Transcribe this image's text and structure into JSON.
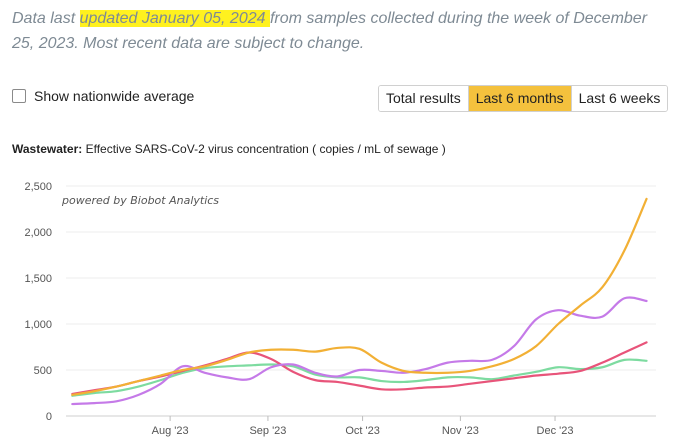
{
  "note": {
    "prefix": "Data last ",
    "highlight": "updated January 05, 2024 ",
    "suffix": "from samples collected during the week of December 25, 2023. Most recent data are subject to change."
  },
  "controls": {
    "checkbox_label": "Show nationwide average",
    "checked": false,
    "toggles": [
      {
        "label": "Total results",
        "active": false
      },
      {
        "label": "Last 6 months",
        "active": true
      },
      {
        "label": "Last 6 weeks",
        "active": false
      }
    ]
  },
  "chart_header": {
    "bold": "Wastewater:",
    "rest": " Effective SARS-CoV-2 virus concentration ( copies / mL of sewage )"
  },
  "attribution": "powered by Biobot Analytics",
  "colors": {
    "orange": "#f2b035",
    "pink": "#e8547a",
    "green": "#7ddba0",
    "purple": "#c57ae8",
    "highlight": "#fff11f",
    "active_toggle": "#f4c13d"
  },
  "chart_data": {
    "type": "line",
    "title": "Wastewater: Effective SARS-CoV-2 virus concentration ( copies / mL of sewage )",
    "xlabel": "",
    "ylabel": "",
    "x_ticks": [
      "Aug '23",
      "Sep '23",
      "Oct '23",
      "Nov '23",
      "Dec '23"
    ],
    "x": [
      "2023-07-01",
      "2023-07-08",
      "2023-07-15",
      "2023-07-22",
      "2023-07-29",
      "2023-08-05",
      "2023-08-12",
      "2023-08-19",
      "2023-08-26",
      "2023-09-02",
      "2023-09-09",
      "2023-09-16",
      "2023-09-23",
      "2023-09-30",
      "2023-10-07",
      "2023-10-14",
      "2023-10-21",
      "2023-10-28",
      "2023-11-04",
      "2023-11-11",
      "2023-11-18",
      "2023-11-25",
      "2023-12-02",
      "2023-12-09",
      "2023-12-16",
      "2023-12-23",
      "2023-12-30"
    ],
    "ylim": [
      0,
      2500
    ],
    "y_ticks": [
      0,
      500,
      1000,
      1500,
      2000,
      2500
    ],
    "grid": true,
    "series": [
      {
        "color": "orange",
        "values": [
          230,
          270,
          320,
          380,
          440,
          500,
          540,
          610,
          690,
          720,
          720,
          700,
          740,
          730,
          580,
          490,
          470,
          470,
          490,
          540,
          620,
          760,
          1000,
          1200,
          1400,
          1800,
          2360
        ]
      },
      {
        "color": "pink",
        "values": [
          240,
          280,
          320,
          380,
          430,
          490,
          550,
          620,
          690,
          620,
          480,
          390,
          370,
          330,
          290,
          290,
          310,
          320,
          350,
          380,
          410,
          440,
          460,
          490,
          580,
          690,
          800
        ]
      },
      {
        "color": "green",
        "values": [
          220,
          250,
          270,
          320,
          390,
          470,
          520,
          540,
          550,
          560,
          540,
          450,
          420,
          420,
          380,
          370,
          390,
          420,
          420,
          400,
          440,
          480,
          530,
          510,
          530,
          610,
          600
        ]
      },
      {
        "color": "purple",
        "values": [
          130,
          140,
          160,
          230,
          350,
          540,
          470,
          420,
          400,
          530,
          560,
          470,
          430,
          500,
          490,
          470,
          510,
          580,
          600,
          610,
          760,
          1050,
          1150,
          1090,
          1080,
          1280,
          1250
        ]
      }
    ]
  }
}
